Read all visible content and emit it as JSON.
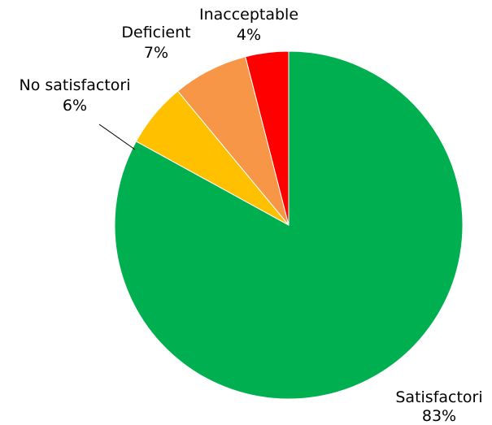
{
  "chart_data": {
    "type": "pie",
    "title": "",
    "legend": "none",
    "start_angle_deg": 0,
    "direction": "clockwise",
    "slices": [
      {
        "label": "Satisfactori",
        "value": 83,
        "value_label": "83%",
        "color": "#00b050"
      },
      {
        "label": "No satisfactori",
        "value": 6,
        "value_label": "6%",
        "color": "#ffc000"
      },
      {
        "label": "Deficient",
        "value": 7,
        "value_label": "7%",
        "color": "#f79646"
      },
      {
        "label": "Inacceptable",
        "value": 4,
        "value_label": "4%",
        "color": "#ff0000"
      }
    ]
  }
}
